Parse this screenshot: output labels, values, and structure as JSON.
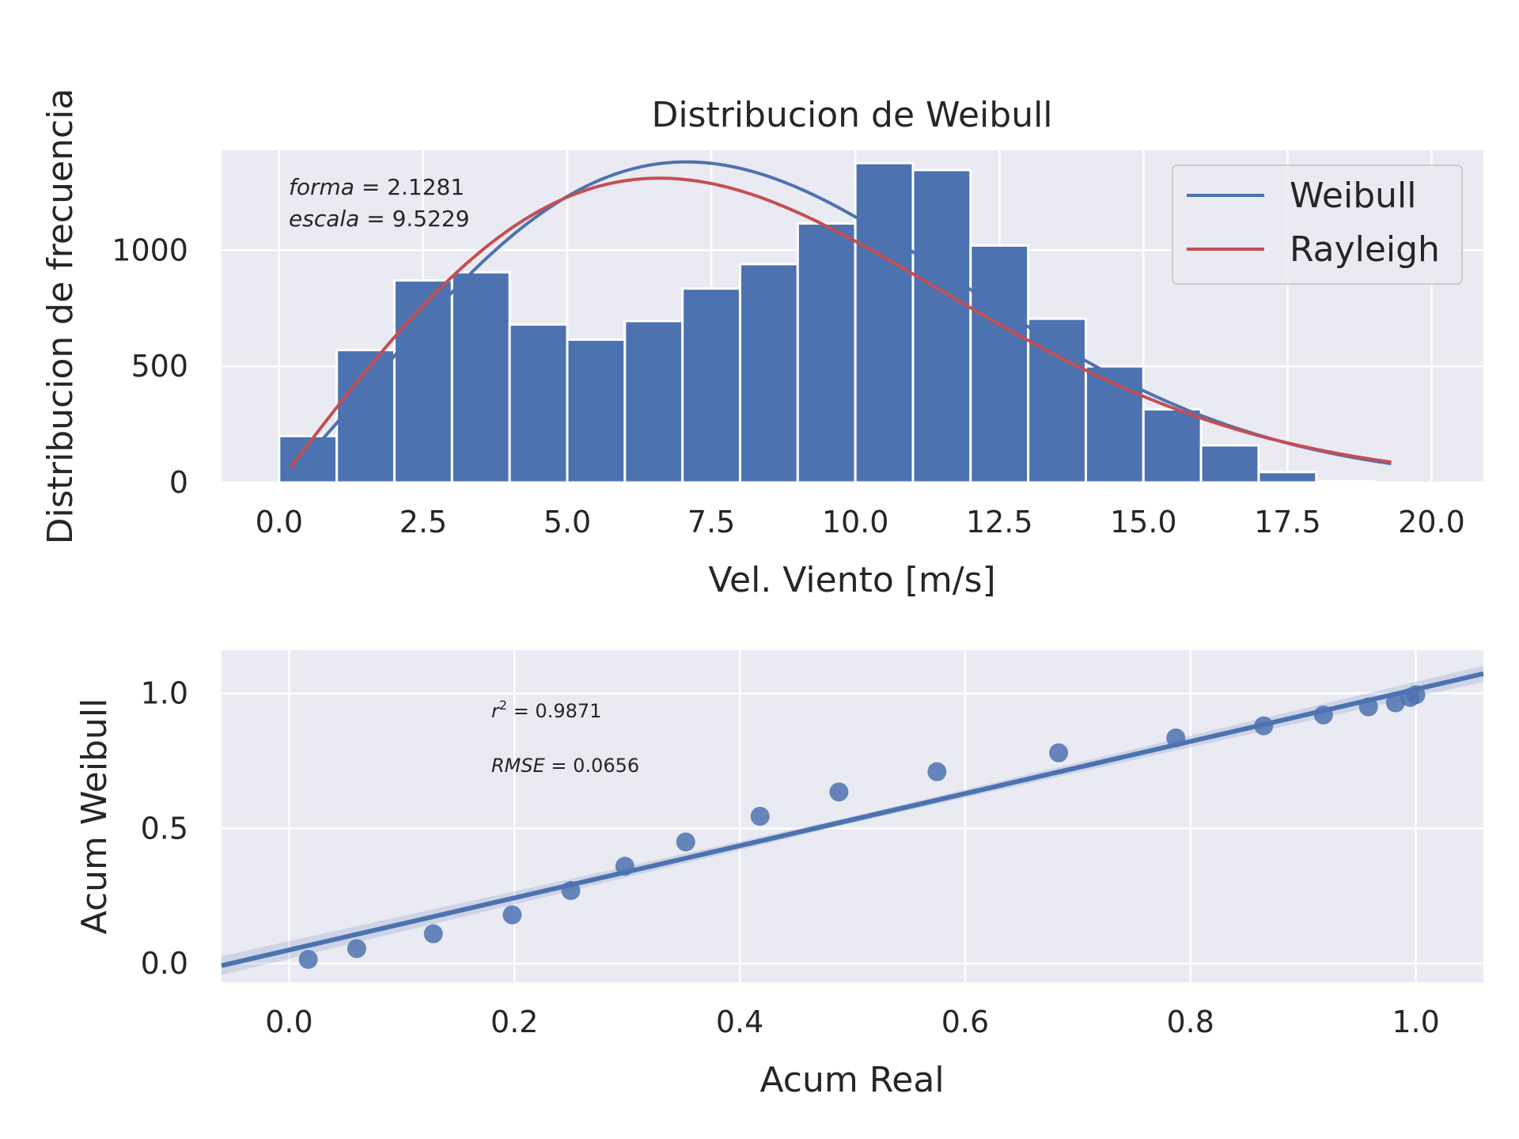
{
  "chart_data": [
    {
      "type": "bar",
      "title": "Distribucion de Weibull",
      "xlabel": "Vel. Viento [m/s]",
      "ylabel": "Distribucion de frecuencia",
      "xlim": [
        -1.0,
        20.9
      ],
      "ylim": [
        0,
        1430
      ],
      "xticks": [
        "0.0",
        "2.5",
        "5.0",
        "7.5",
        "10.0",
        "12.5",
        "15.0",
        "17.5",
        "20.0"
      ],
      "yticks": [
        "0",
        "500",
        "1000"
      ],
      "bins": [
        0,
        1,
        2,
        3,
        4,
        5,
        6,
        7,
        8,
        9,
        10,
        11,
        12,
        13,
        14,
        15,
        16,
        17,
        18,
        19,
        20
      ],
      "counts": [
        200,
        570,
        870,
        905,
        680,
        615,
        695,
        835,
        940,
        1115,
        1375,
        1345,
        1020,
        705,
        500,
        315,
        160,
        45,
        5,
        0
      ],
      "color": "#4c72b0",
      "curves": {
        "weibull": {
          "shape": 2.1281,
          "scale": 9.5229,
          "peak": 1380,
          "color": "#4c72b0"
        },
        "rayleigh": {
          "sigma": 6.6,
          "peak": 1310,
          "color": "#c44e52"
        },
        "x_range": [
          0.2,
          19.3
        ]
      },
      "annotation": {
        "line1": {
          "var": "forma",
          "eq": " = 2.1281"
        },
        "line2": {
          "var": "escala",
          "eq": " = 9.5229"
        }
      },
      "legend": {
        "position": "upper right",
        "entries": [
          "Weibull",
          "Rayleigh"
        ]
      }
    },
    {
      "type": "scatter",
      "xlabel": "Acum Real",
      "ylabel": "Acum Weibull",
      "xlim": [
        -0.06,
        1.06
      ],
      "ylim": [
        -0.07,
        1.16
      ],
      "xticks": [
        "0.0",
        "0.2",
        "0.4",
        "0.6",
        "0.8",
        "1.0"
      ],
      "yticks": [
        "0.0",
        "0.5",
        "1.0"
      ],
      "points": [
        [
          0.017,
          0.015
        ],
        [
          0.06,
          0.055
        ],
        [
          0.128,
          0.11
        ],
        [
          0.198,
          0.18
        ],
        [
          0.25,
          0.27
        ],
        [
          0.298,
          0.36
        ],
        [
          0.352,
          0.45
        ],
        [
          0.418,
          0.545
        ],
        [
          0.488,
          0.635
        ],
        [
          0.575,
          0.71
        ],
        [
          0.683,
          0.78
        ],
        [
          0.787,
          0.835
        ],
        [
          0.865,
          0.88
        ],
        [
          0.918,
          0.92
        ],
        [
          0.958,
          0.95
        ],
        [
          0.982,
          0.965
        ],
        [
          0.995,
          0.985
        ],
        [
          1.0,
          0.995
        ]
      ],
      "regression": {
        "slope": 0.965,
        "intercept": 0.05
      },
      "color": "#4c72b0",
      "annotation": {
        "r2": {
          "var": "r",
          "sup": "2",
          "eq": " = 0.9871"
        },
        "rmse": {
          "var": "RMSE",
          "eq": " = 0.0656"
        }
      }
    }
  ]
}
